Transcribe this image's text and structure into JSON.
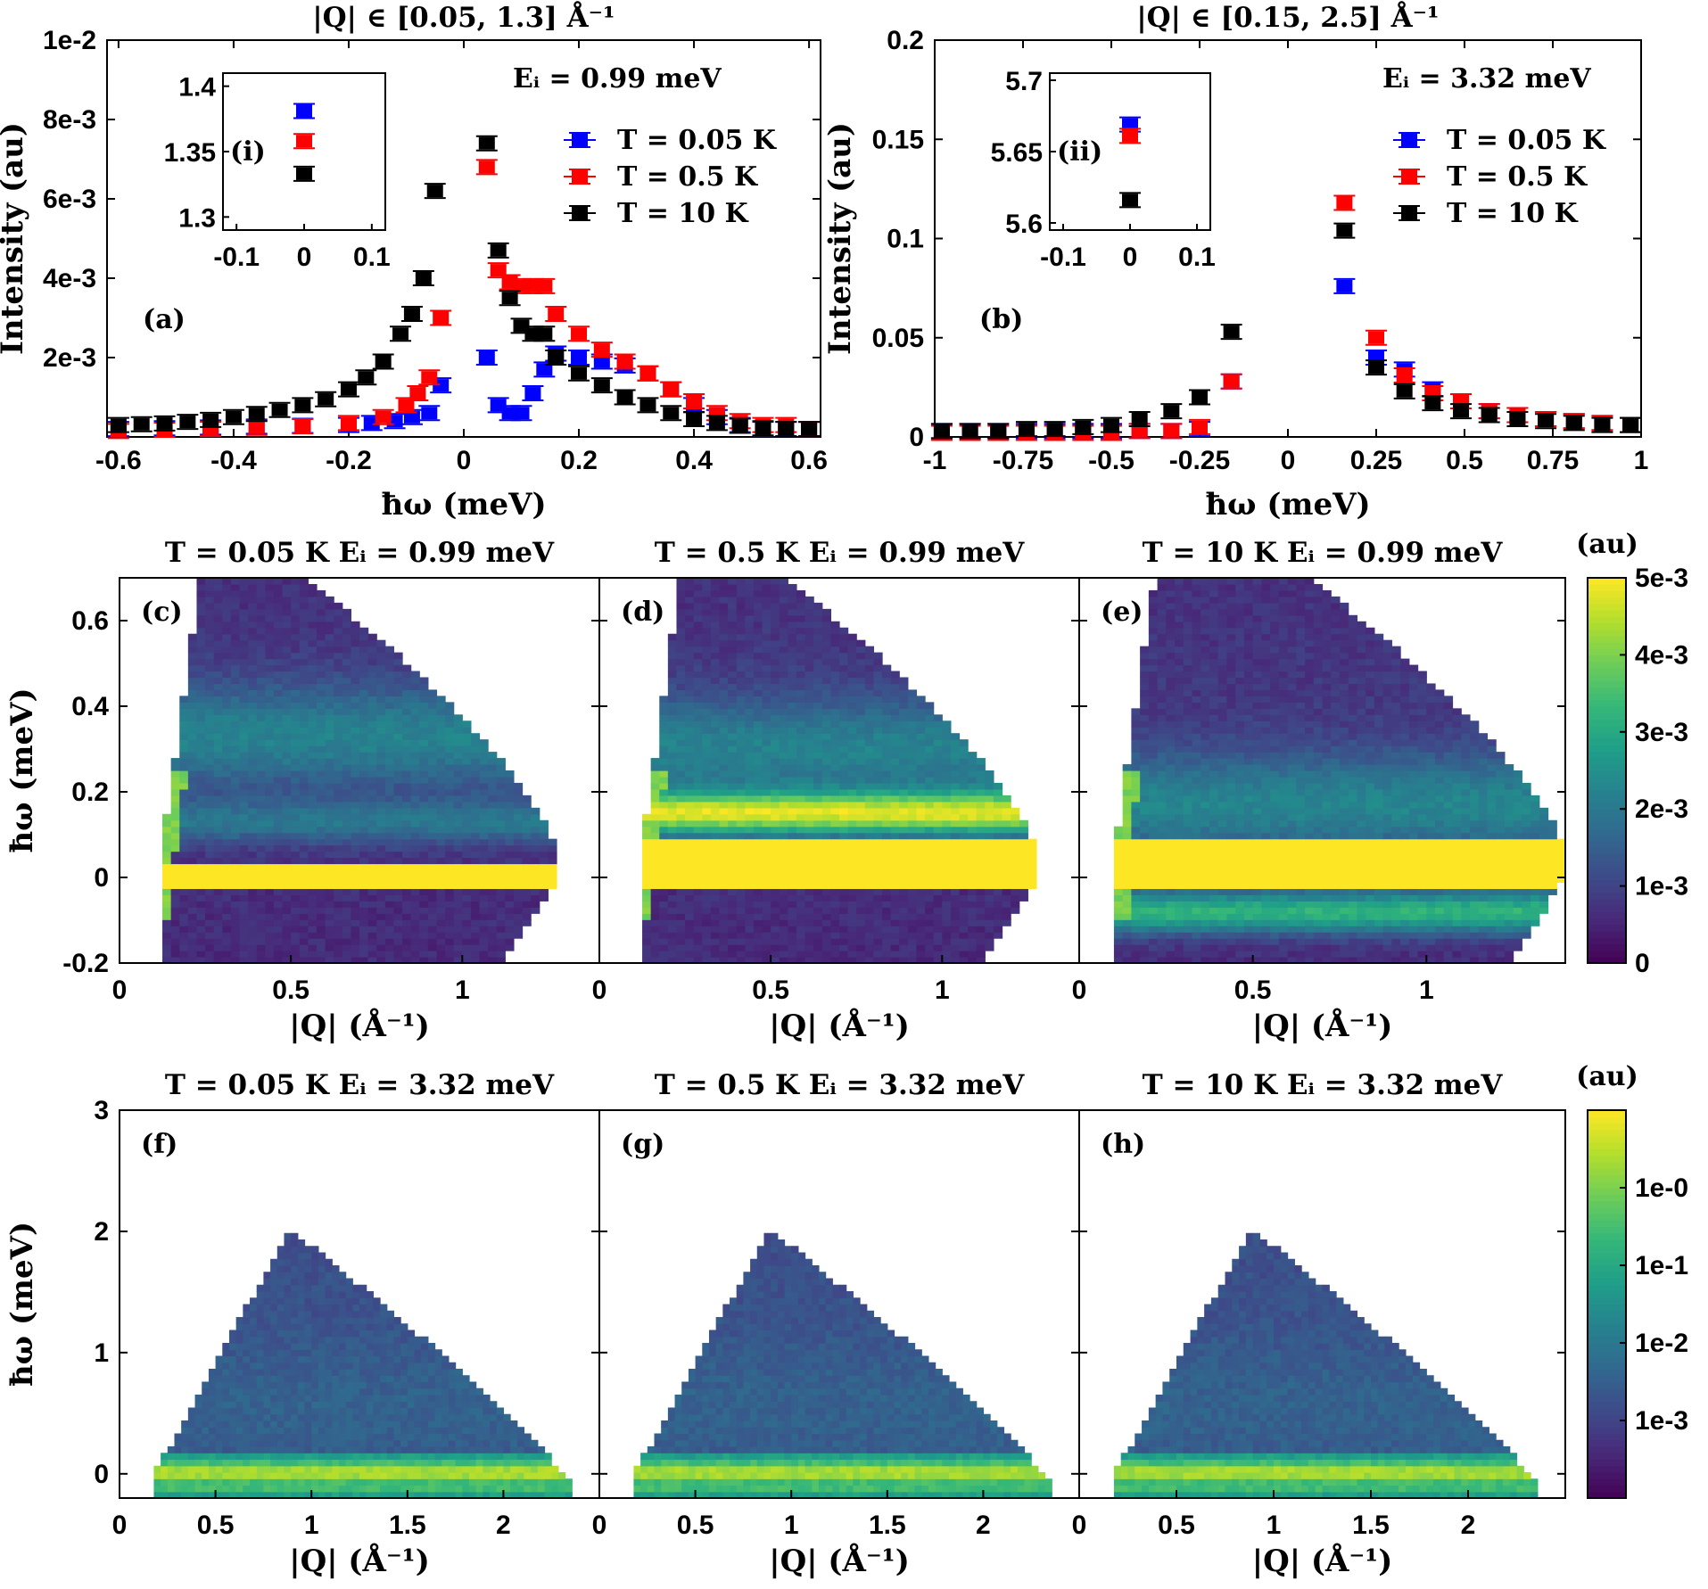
{
  "colors": {
    "series_low": "#0000ff",
    "series_mid": "#ff0000",
    "series_high": "#000000",
    "viridis_low": "#440154",
    "viridis_high": "#fde725"
  },
  "chart_data": [
    {
      "id": "a",
      "type": "scatter",
      "title": "|Q| ∈ [0.05, 1.3] Å⁻¹",
      "panel_label": "(a)",
      "annotation": "Eᵢ = 0.99 meV",
      "xlabel": "ħω (meV)",
      "ylabel": "Intensity (au)",
      "xlim": [
        -0.62,
        0.62
      ],
      "ylim": [
        0,
        0.01
      ],
      "xticks": [
        -0.6,
        -0.4,
        -0.2,
        0,
        0.2,
        0.4,
        0.6
      ],
      "xtick_labels": [
        "-0.6",
        "-0.4",
        "-0.2",
        "0",
        "0.2",
        "0.4",
        "0.6"
      ],
      "yticks": [
        0.002,
        0.004,
        0.006,
        0.008,
        0.01
      ],
      "ytick_labels": [
        "2e-3",
        "4e-3",
        "6e-3",
        "8e-3",
        "1e-2"
      ],
      "legend": [
        "T = 0.05 K",
        "T = 0.5 K",
        "T = 10 K"
      ],
      "series": [
        {
          "name": "T = 0.05 K",
          "color": "#0000ff",
          "x": [
            -0.6,
            -0.52,
            -0.44,
            -0.36,
            -0.28,
            -0.2,
            -0.16,
            -0.12,
            -0.09,
            -0.06,
            -0.04,
            0.04,
            0.06,
            0.08,
            0.1,
            0.12,
            0.14,
            0.16,
            0.2,
            0.24,
            0.28,
            0.32,
            0.36,
            0.4,
            0.44,
            0.48,
            0.52,
            0.56,
            0.6
          ],
          "y": [
            0.0002,
            0.00022,
            0.00024,
            0.00026,
            0.00028,
            0.0003,
            0.00035,
            0.0004,
            0.0005,
            0.0006,
            0.0013,
            0.002,
            0.0008,
            0.0006,
            0.0006,
            0.0011,
            0.0017,
            0.0021,
            0.002,
            0.0019,
            0.0018,
            0.0016,
            0.0012,
            0.0008,
            0.0005,
            0.0003,
            0.0002,
            0.0002,
            0.0002
          ]
        },
        {
          "name": "T = 0.5 K",
          "color": "#ff0000",
          "x": [
            -0.6,
            -0.52,
            -0.44,
            -0.36,
            -0.28,
            -0.2,
            -0.14,
            -0.1,
            -0.08,
            -0.06,
            -0.04,
            0.04,
            0.06,
            0.08,
            0.1,
            0.12,
            0.14,
            0.16,
            0.2,
            0.24,
            0.28,
            0.32,
            0.36,
            0.4,
            0.44,
            0.48,
            0.52,
            0.56,
            0.6
          ],
          "y": [
            0.00015,
            0.00018,
            0.0002,
            0.00023,
            0.00027,
            0.00035,
            0.0005,
            0.0008,
            0.0011,
            0.0015,
            0.003,
            0.0068,
            0.0042,
            0.0039,
            0.0038,
            0.0038,
            0.0038,
            0.0031,
            0.0026,
            0.0022,
            0.0019,
            0.0016,
            0.0012,
            0.0009,
            0.0006,
            0.0004,
            0.0003,
            0.0003,
            0.0002
          ]
        },
        {
          "name": "T = 10 K",
          "color": "#000000",
          "x": [
            -0.6,
            -0.56,
            -0.52,
            -0.48,
            -0.44,
            -0.4,
            -0.36,
            -0.32,
            -0.28,
            -0.24,
            -0.2,
            -0.17,
            -0.14,
            -0.11,
            -0.09,
            -0.07,
            -0.05,
            0.04,
            0.06,
            0.08,
            0.1,
            0.12,
            0.14,
            0.16,
            0.2,
            0.24,
            0.28,
            0.32,
            0.36,
            0.4,
            0.44,
            0.48,
            0.52,
            0.56,
            0.6
          ],
          "y": [
            0.0003,
            0.00032,
            0.00034,
            0.00038,
            0.00043,
            0.0005,
            0.00058,
            0.00068,
            0.0008,
            0.00095,
            0.0012,
            0.0015,
            0.0019,
            0.0026,
            0.0031,
            0.004,
            0.0062,
            0.0074,
            0.0047,
            0.0035,
            0.0028,
            0.0026,
            0.0026,
            0.002,
            0.0016,
            0.0013,
            0.001,
            0.0008,
            0.0006,
            0.00045,
            0.00035,
            0.00028,
            0.00022,
            0.0002,
            0.0002
          ]
        }
      ],
      "inset": {
        "label": "(i)",
        "xlim": [
          -0.12,
          0.12
        ],
        "ylim": [
          1.29,
          1.41
        ],
        "xticks": [
          -0.1,
          0,
          0.1
        ],
        "xtick_labels": [
          "-0.1",
          "0",
          "0.1"
        ],
        "yticks": [
          1.3,
          1.35,
          1.4
        ],
        "ytick_labels": [
          "1.3",
          "1.35",
          "1.4"
        ],
        "points": [
          {
            "x": 0,
            "y": 1.381,
            "color": "#0000ff"
          },
          {
            "x": 0,
            "y": 1.358,
            "color": "#ff0000"
          },
          {
            "x": 0,
            "y": 1.333,
            "color": "#000000"
          }
        ]
      }
    },
    {
      "id": "b",
      "type": "scatter",
      "title": "|Q| ∈ [0.15, 2.5] Å⁻¹",
      "panel_label": "(b)",
      "annotation": "Eᵢ = 3.32 meV",
      "xlabel": "ħω (meV)",
      "ylabel": "Intensity (au)",
      "xlim": [
        -1,
        1
      ],
      "ylim": [
        0,
        0.2
      ],
      "xticks": [
        -1,
        -0.75,
        -0.5,
        -0.25,
        0,
        0.25,
        0.5,
        0.75,
        1
      ],
      "xtick_labels": [
        "-1",
        "-0.75",
        "-0.5",
        "-0.25",
        "0",
        "0.25",
        "0.5",
        "0.75",
        "1"
      ],
      "yticks": [
        0,
        0.05,
        0.1,
        0.15,
        0.2
      ],
      "ytick_labels": [
        "0",
        "0.05",
        "0.1",
        "0.15",
        "0.2"
      ],
      "legend": [
        "T = 0.05 K",
        "T = 0.5 K",
        "T = 10 K"
      ],
      "series": [
        {
          "name": "T = 0.05 K",
          "color": "#0000ff",
          "x": [
            -0.98,
            -0.9,
            -0.82,
            -0.74,
            -0.66,
            -0.58,
            -0.5,
            -0.42,
            -0.33,
            -0.25,
            -0.16,
            0.16,
            0.25,
            0.33,
            0.41,
            0.49,
            0.57,
            0.65,
            0.73,
            0.81,
            0.89,
            0.97
          ],
          "y": [
            0.003,
            0.003,
            0.003,
            0.003,
            0.003,
            0.003,
            0.003,
            0.003,
            0.003,
            0.004,
            0.028,
            0.076,
            0.04,
            0.034,
            0.024,
            0.018,
            0.013,
            0.011,
            0.009,
            0.008,
            0.007,
            0.006
          ]
        },
        {
          "name": "T = 0.5 K",
          "color": "#ff0000",
          "x": [
            -0.98,
            -0.9,
            -0.82,
            -0.74,
            -0.66,
            -0.58,
            -0.5,
            -0.42,
            -0.33,
            -0.25,
            -0.16,
            0.16,
            0.25,
            0.33,
            0.41,
            0.49,
            0.57,
            0.65,
            0.73,
            0.81,
            0.89,
            0.97
          ],
          "y": [
            0.002,
            0.002,
            0.002,
            0.002,
            0.002,
            0.002,
            0.002,
            0.003,
            0.003,
            0.005,
            0.028,
            0.118,
            0.05,
            0.031,
            0.022,
            0.018,
            0.013,
            0.011,
            0.009,
            0.008,
            0.007,
            0.006
          ]
        },
        {
          "name": "T = 10 K",
          "color": "#000000",
          "x": [
            -0.98,
            -0.9,
            -0.82,
            -0.74,
            -0.66,
            -0.58,
            -0.5,
            -0.42,
            -0.33,
            -0.25,
            -0.16,
            0.16,
            0.25,
            0.33,
            0.41,
            0.49,
            0.57,
            0.65,
            0.73,
            0.81,
            0.89,
            0.97
          ],
          "y": [
            0.003,
            0.003,
            0.003,
            0.004,
            0.004,
            0.005,
            0.006,
            0.009,
            0.013,
            0.02,
            0.053,
            0.104,
            0.035,
            0.023,
            0.017,
            0.013,
            0.011,
            0.009,
            0.008,
            0.007,
            0.006,
            0.006
          ]
        }
      ],
      "inset": {
        "label": "(ii)",
        "xlim": [
          -0.12,
          0.12
        ],
        "ylim": [
          5.595,
          5.705
        ],
        "xticks": [
          -0.1,
          0,
          0.1
        ],
        "xtick_labels": [
          "-0.1",
          "0",
          "0.1"
        ],
        "yticks": [
          5.6,
          5.65,
          5.7
        ],
        "ytick_labels": [
          "5.6",
          "5.65",
          "5.7"
        ],
        "points": [
          {
            "x": 0,
            "y": 5.669,
            "color": "#0000ff"
          },
          {
            "x": 0,
            "y": 5.661,
            "color": "#ff0000"
          },
          {
            "x": 0,
            "y": 5.616,
            "color": "#000000"
          }
        ]
      }
    },
    {
      "id": "c",
      "type": "heatmap",
      "panel_label": "(c)",
      "title": "T = 0.05 K Eᵢ = 0.99 meV",
      "row": 0,
      "col": 0,
      "xlabel": "|Q| (Å⁻¹)",
      "ylabel": "ħω (meV)",
      "xlim": [
        0,
        1.4
      ],
      "ylim": [
        -0.2,
        0.7
      ],
      "xticks": [
        0,
        0.5,
        1
      ],
      "xtick_labels": [
        "0",
        "0.5",
        "1"
      ],
      "yticks": [
        -0.2,
        0,
        0.2,
        0.4,
        0.6
      ],
      "ytick_labels": [
        "-0.2",
        "0",
        "0.2",
        "0.4",
        "0.6"
      ],
      "elastic_band": [
        -0.03,
        0.03
      ],
      "inelastic_band": [
        0.13,
        0.0012,
        0.33,
        0.0024
      ],
      "colorscale": "linear"
    },
    {
      "id": "d",
      "type": "heatmap",
      "panel_label": "(d)",
      "title": "T = 0.5 K Eᵢ = 0.99 meV",
      "row": 0,
      "col": 1,
      "xlabel": "|Q| (Å⁻¹)",
      "ylabel": "",
      "xlim": [
        0,
        1.4
      ],
      "ylim": [
        -0.2,
        0.7
      ],
      "xticks": [
        0,
        0.5,
        1
      ],
      "xtick_labels": [
        "0",
        "0.5",
        "1"
      ],
      "yticks": [],
      "ytick_labels": [],
      "elastic_band": [
        -0.03,
        0.09
      ],
      "inelastic_band": [
        0.15,
        0.0038,
        0.3,
        0.0024
      ],
      "colorscale": "linear"
    },
    {
      "id": "e",
      "type": "heatmap",
      "panel_label": "(e)",
      "title": "T = 10 K Eᵢ = 0.99 meV",
      "row": 0,
      "col": 2,
      "xlabel": "|Q| (Å⁻¹)",
      "ylabel": "",
      "xlim": [
        0,
        1.4
      ],
      "ylim": [
        -0.2,
        0.7
      ],
      "xticks": [
        0,
        0.5,
        1
      ],
      "xtick_labels": [
        "0",
        "0.5",
        "1"
      ],
      "yticks": [],
      "ytick_labels": [],
      "elastic_band": [
        -0.03,
        0.09
      ],
      "inelastic_band": [
        -0.08,
        0.0026,
        0.17,
        0.0026
      ],
      "colorscale": "linear"
    },
    {
      "id": "f",
      "type": "heatmap",
      "panel_label": "(f)",
      "title": "T = 0.05 K Eᵢ = 3.32 meV",
      "row": 1,
      "col": 0,
      "xlabel": "|Q| (Å⁻¹)",
      "ylabel": "ħω (meV)",
      "xlim": [
        0,
        2.5
      ],
      "ylim": [
        -0.2,
        3
      ],
      "xticks": [
        0,
        0.5,
        1,
        1.5,
        2
      ],
      "xtick_labels": [
        "0",
        "0.5",
        "1",
        "1.5",
        "2"
      ],
      "yticks": [
        0,
        1,
        2,
        3
      ],
      "ytick_labels": [
        "0",
        "1",
        "2",
        "3"
      ],
      "colorscale": "log"
    },
    {
      "id": "g",
      "type": "heatmap",
      "panel_label": "(g)",
      "title": "T = 0.5 K Eᵢ = 3.32 meV",
      "row": 1,
      "col": 1,
      "xlabel": "|Q| (Å⁻¹)",
      "ylabel": "",
      "xlim": [
        0,
        2.5
      ],
      "ylim": [
        -0.2,
        3
      ],
      "xticks": [
        0,
        0.5,
        1,
        1.5,
        2
      ],
      "xtick_labels": [
        "0",
        "0.5",
        "1",
        "1.5",
        "2"
      ],
      "yticks": [],
      "ytick_labels": [],
      "colorscale": "log"
    },
    {
      "id": "h",
      "type": "heatmap",
      "panel_label": "(h)",
      "title": "T = 10 K Eᵢ = 3.32 meV",
      "row": 1,
      "col": 2,
      "xlabel": "|Q| (Å⁻¹)",
      "ylabel": "",
      "xlim": [
        0,
        2.5
      ],
      "ylim": [
        -0.2,
        3
      ],
      "xticks": [
        0,
        0.5,
        1,
        1.5,
        2
      ],
      "xtick_labels": [
        "0",
        "0.5",
        "1",
        "1.5",
        "2"
      ],
      "yticks": [],
      "ytick_labels": [],
      "colorscale": "log"
    }
  ],
  "colorbars": [
    {
      "id": "cb-top",
      "unit": "(au)",
      "scale": "linear",
      "range": [
        0,
        0.005
      ],
      "ticks": [
        0,
        0.001,
        0.002,
        0.003,
        0.004,
        0.005
      ],
      "tick_labels": [
        "0",
        "1e-3",
        "2e-3",
        "3e-3",
        "4e-3",
        "5e-3"
      ]
    },
    {
      "id": "cb-bottom",
      "unit": "(au)",
      "scale": "log",
      "range": [
        -4,
        1
      ],
      "ticks": [
        -3,
        -2,
        -1,
        0
      ],
      "tick_labels": [
        "1e-3",
        "1e-2",
        "1e-1",
        "1e-0"
      ]
    }
  ]
}
